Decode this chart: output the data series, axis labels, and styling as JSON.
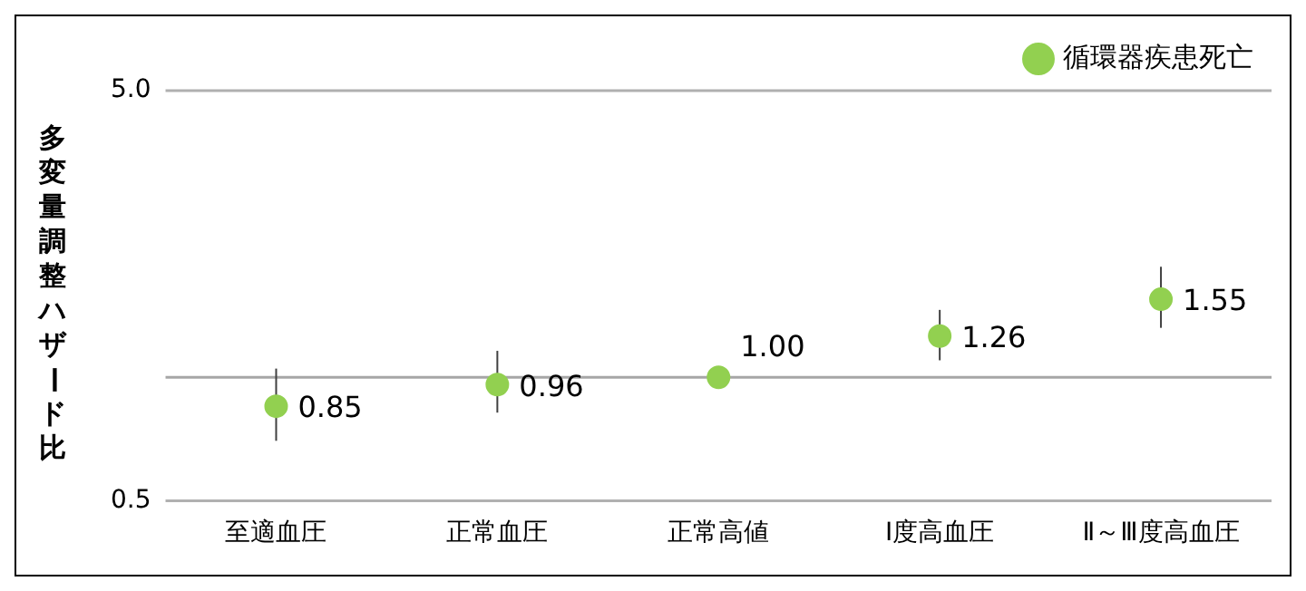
{
  "chart_data": {
    "type": "scatter",
    "ylabel": "多変量調整ハザード比",
    "categories": [
      "至適血圧",
      "正常血圧",
      "正常高値",
      "Ⅰ度高血圧",
      "Ⅱ～Ⅲ度高血圧"
    ],
    "series": [
      {
        "name": "循環器疾患死亡",
        "color": "#92d050",
        "values": [
          0.85,
          0.96,
          1.0,
          1.26,
          1.55
        ],
        "errors": [
          [
            0.7,
            1.05
          ],
          [
            0.82,
            1.16
          ],
          null,
          [
            1.1,
            1.46
          ],
          [
            1.32,
            1.86
          ]
        ],
        "value_labels": [
          "0.85",
          "0.96",
          "1.00",
          "1.26",
          "1.55"
        ]
      }
    ],
    "log": "y",
    "ylim": [
      0.5,
      5
    ],
    "yticks": [
      {
        "value": 0.5,
        "label": "0.5"
      },
      {
        "value": 5,
        "label": "5.0"
      }
    ],
    "ref_lines": [
      {
        "axis": "y",
        "value": 1,
        "color": "#a6a6a6"
      }
    ],
    "legend": "top right",
    "marker": "circle"
  }
}
